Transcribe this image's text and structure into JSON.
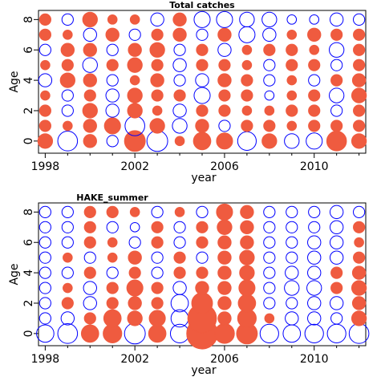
{
  "chart_data": [
    {
      "type": "scatter",
      "subtype": "bubble-residuals",
      "title": "Total catches",
      "xlabel": "year",
      "ylabel": "Age",
      "x_ticks": [
        1998,
        2002,
        2006,
        2010
      ],
      "y_ticks": [
        0,
        2,
        4,
        6,
        8
      ],
      "xlim": [
        1997.7,
        2012.3
      ],
      "ylim": [
        -0.8,
        8.6
      ],
      "years": [
        1998,
        1999,
        2000,
        2001,
        2002,
        2003,
        2004,
        2005,
        2006,
        2007,
        2008,
        2009,
        2010,
        2011,
        2012
      ],
      "ages": [
        0,
        1,
        2,
        3,
        4,
        5,
        6,
        7,
        8
      ],
      "positive_color": "#ef5b3f",
      "negative_color": "#0000ff",
      "residuals": [
        [
          0.5,
          -0.9,
          0.4,
          -0.3,
          1.0,
          -1.0,
          0.2,
          0.7,
          0.6,
          -0.8,
          0.5,
          -0.5,
          -0.6,
          0.9,
          0.5
        ],
        [
          0.3,
          0.2,
          0.4,
          0.6,
          -0.9,
          0.5,
          -0.5,
          0.4,
          -0.3,
          0.3,
          0.3,
          0.2,
          0.3,
          0.3,
          0.3
        ],
        [
          0.3,
          -0.3,
          0.5,
          -0.4,
          0.5,
          0.2,
          -0.4,
          0.3,
          0.3,
          0.2,
          0.2,
          0.3,
          0.3,
          -0.3,
          0.3
        ],
        [
          0.2,
          -0.3,
          0.3,
          -0.4,
          0.5,
          0.3,
          0.3,
          -0.6,
          0.3,
          0.3,
          -0.2,
          0.2,
          0.3,
          -0.5,
          0.5
        ],
        [
          -0.4,
          0.5,
          0.4,
          -0.3,
          0.2,
          0.4,
          -0.3,
          -0.4,
          0.4,
          0.3,
          -0.3,
          0.2,
          -0.3,
          0.3,
          0.4
        ],
        [
          0.2,
          0.3,
          -0.5,
          0.3,
          0.5,
          0.3,
          -0.4,
          0.3,
          0.3,
          0.2,
          -0.3,
          0.3,
          0.3,
          -0.3,
          0.3
        ],
        [
          -0.3,
          0.4,
          0.4,
          -0.3,
          0.4,
          0.5,
          -0.3,
          0.3,
          -0.4,
          0.2,
          0.3,
          0.3,
          0.2,
          -0.5,
          0.3
        ],
        [
          0.3,
          0.2,
          -0.4,
          0.4,
          -0.3,
          0.3,
          0.4,
          -0.3,
          0.4,
          -0.6,
          -0.4,
          0.2,
          0.4,
          0.3,
          0.3
        ],
        [
          0.3,
          -0.3,
          0.5,
          0.2,
          0.2,
          -0.4,
          0.4,
          -0.6,
          -0.6,
          -0.5,
          -0.5,
          -0.2,
          -0.2,
          -0.4,
          -0.3
        ]
      ]
    },
    {
      "type": "scatter",
      "subtype": "bubble-residuals",
      "title": "HAKE_summer",
      "xlabel": "year",
      "ylabel": "Age",
      "x_ticks": [
        1998,
        2002,
        2006,
        2010
      ],
      "y_ticks": [
        0,
        2,
        4,
        6,
        8
      ],
      "xlim": [
        1997.7,
        2012.3
      ],
      "ylim": [
        -0.8,
        8.6
      ],
      "years": [
        1998,
        1999,
        2000,
        2001,
        2002,
        2003,
        2004,
        2005,
        2006,
        2007,
        2008,
        2009,
        2010,
        2011,
        2012
      ],
      "ages": [
        0,
        1,
        2,
        3,
        4,
        5,
        6,
        7,
        8
      ],
      "positive_color": "#ef5b3f",
      "negative_color": "#0000ff",
      "residuals": [
        [
          -0.7,
          -0.9,
          0.7,
          0.8,
          -1.0,
          0.7,
          -0.8,
          2.2,
          0.9,
          1.0,
          -0.8,
          -0.7,
          -0.8,
          -0.8,
          -0.9
        ],
        [
          -0.3,
          -0.4,
          0.3,
          0.7,
          0.5,
          0.6,
          -0.7,
          1.9,
          0.4,
          0.8,
          0.2,
          -0.4,
          -0.4,
          -0.3,
          0.5
        ],
        [
          -0.3,
          0.3,
          -0.4,
          0.3,
          0.4,
          0.3,
          -0.7,
          1.0,
          0.4,
          0.7,
          -0.3,
          -0.3,
          -0.4,
          -0.4,
          0.4
        ],
        [
          -0.3,
          0.2,
          -0.4,
          0.3,
          0.6,
          0.3,
          -0.4,
          0.4,
          0.4,
          0.6,
          -0.3,
          -0.5,
          -0.5,
          0.3,
          0.5
        ],
        [
          -0.3,
          -0.3,
          0.3,
          -0.3,
          0.3,
          -0.3,
          0.3,
          0.3,
          0.4,
          0.5,
          -0.3,
          -0.4,
          -0.4,
          0.3,
          0.4
        ],
        [
          -0.3,
          0.2,
          -0.3,
          0.2,
          0.4,
          -0.3,
          0.3,
          -0.3,
          0.4,
          0.5,
          -0.3,
          -0.3,
          -0.4,
          -0.4,
          0.3
        ],
        [
          -0.3,
          -0.3,
          0.3,
          0.2,
          -0.3,
          0.3,
          -0.3,
          0.3,
          0.4,
          0.4,
          -0.3,
          -0.3,
          -0.4,
          -0.4,
          0.2
        ],
        [
          -0.3,
          -0.3,
          0.3,
          -0.3,
          -0.2,
          0.3,
          -0.3,
          0.3,
          0.5,
          0.4,
          -0.3,
          -0.3,
          -0.3,
          -0.4,
          0.3
        ],
        [
          -0.3,
          -0.3,
          0.3,
          0.3,
          0.2,
          -0.3,
          0.2,
          -0.3,
          0.6,
          0.4,
          -0.3,
          -0.3,
          -0.3,
          -0.4,
          -0.3
        ]
      ]
    }
  ]
}
